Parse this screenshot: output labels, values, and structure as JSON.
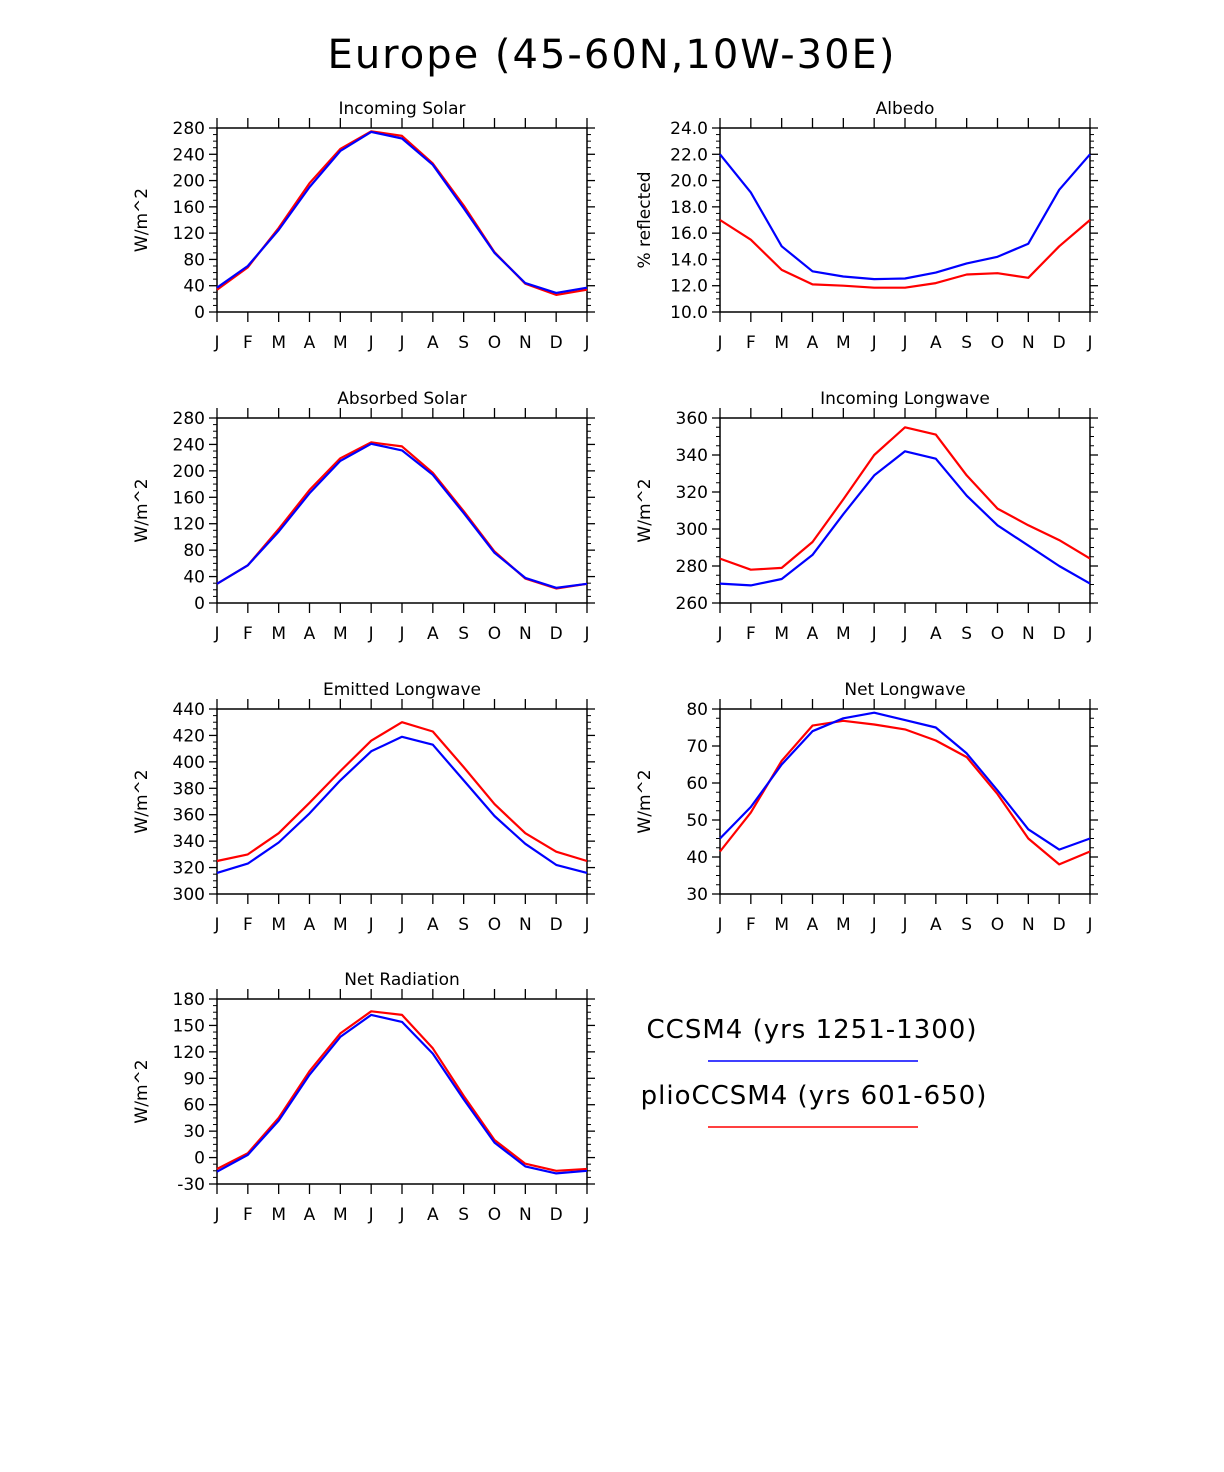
{
  "figure_title": "Europe (45-60N,10W-30E)",
  "colors": {
    "ccsm4": "#0000ff",
    "plio": "#ff0000"
  },
  "legend": [
    {
      "label": "CCSM4 (yrs 1251-1300)",
      "color": "#0000ff"
    },
    {
      "label": "plioCCSM4 (yrs 601-650)",
      "color": "#ff0000"
    }
  ],
  "chart_data": [
    {
      "id": "incoming-solar",
      "type": "line",
      "title": "Incoming Solar",
      "ylabel": "W/m^2",
      "categories": [
        "J",
        "F",
        "M",
        "A",
        "M",
        "J",
        "J",
        "A",
        "S",
        "O",
        "N",
        "D",
        "J"
      ],
      "ylim": [
        0,
        280
      ],
      "yticks": [
        "0",
        "40",
        "80",
        "120",
        "160",
        "200",
        "240",
        "280"
      ],
      "ytick_values": [
        0,
        40,
        80,
        120,
        160,
        200,
        240,
        280
      ],
      "series": [
        {
          "name": "CCSM4 (yrs 1251-1300)",
          "color": "#0000ff",
          "values": [
            37,
            70,
            125,
            190,
            245,
            274,
            264,
            224,
            158,
            90,
            44,
            29,
            37
          ]
        },
        {
          "name": "plioCCSM4 (yrs 601-650)",
          "color": "#ff0000",
          "values": [
            34,
            68,
            128,
            196,
            248,
            275,
            268,
            226,
            162,
            91,
            43,
            26,
            34
          ]
        }
      ]
    },
    {
      "id": "albedo",
      "type": "line",
      "title": "Albedo",
      "ylabel": "% reflected",
      "categories": [
        "J",
        "F",
        "M",
        "A",
        "M",
        "J",
        "J",
        "A",
        "S",
        "O",
        "N",
        "D",
        "J"
      ],
      "ylim": [
        10,
        24
      ],
      "yticks": [
        "10.0",
        "12.0",
        "14.0",
        "16.0",
        "18.0",
        "20.0",
        "22.0",
        "24.0"
      ],
      "ytick_values": [
        10,
        12,
        14,
        16,
        18,
        20,
        22,
        24
      ],
      "series": [
        {
          "name": "CCSM4 (yrs 1251-1300)",
          "color": "#0000ff",
          "values": [
            22.0,
            19.1,
            15.0,
            13.1,
            12.7,
            12.5,
            12.55,
            13.0,
            13.7,
            14.2,
            15.2,
            19.3,
            22.0
          ]
        },
        {
          "name": "plioCCSM4 (yrs 601-650)",
          "color": "#ff0000",
          "values": [
            17.0,
            15.5,
            13.2,
            12.1,
            12.0,
            11.85,
            11.85,
            12.2,
            12.85,
            12.95,
            12.6,
            15.0,
            17.0
          ]
        }
      ]
    },
    {
      "id": "absorbed-solar",
      "type": "line",
      "title": "Absorbed Solar",
      "ylabel": "W/m^2",
      "categories": [
        "J",
        "F",
        "M",
        "A",
        "M",
        "J",
        "J",
        "A",
        "S",
        "O",
        "N",
        "D",
        "J"
      ],
      "ylim": [
        0,
        280
      ],
      "yticks": [
        "0",
        "40",
        "80",
        "120",
        "160",
        "200",
        "240",
        "280"
      ],
      "ytick_values": [
        0,
        40,
        80,
        120,
        160,
        200,
        240,
        280
      ],
      "series": [
        {
          "name": "CCSM4 (yrs 1251-1300)",
          "color": "#0000ff",
          "values": [
            29,
            57,
            108,
            166,
            215,
            241,
            231,
            194,
            136,
            76,
            38,
            23,
            29
          ]
        },
        {
          "name": "plioCCSM4 (yrs 601-650)",
          "color": "#ff0000",
          "values": [
            29,
            57,
            112,
            171,
            219,
            243,
            237,
            197,
            139,
            78,
            37,
            22,
            29
          ]
        }
      ]
    },
    {
      "id": "incoming-longwave",
      "type": "line",
      "title": "Incoming Longwave",
      "ylabel": "W/m^2",
      "categories": [
        "J",
        "F",
        "M",
        "A",
        "M",
        "J",
        "J",
        "A",
        "S",
        "O",
        "N",
        "D",
        "J"
      ],
      "ylim": [
        260,
        360
      ],
      "yticks": [
        "260",
        "280",
        "300",
        "320",
        "340",
        "360"
      ],
      "ytick_values": [
        260,
        280,
        300,
        320,
        340,
        360
      ],
      "series": [
        {
          "name": "CCSM4 (yrs 1251-1300)",
          "color": "#0000ff",
          "values": [
            270.5,
            269.5,
            273,
            286,
            308,
            329,
            342,
            338,
            318,
            302,
            291,
            280,
            270.5
          ]
        },
        {
          "name": "plioCCSM4 (yrs 601-650)",
          "color": "#ff0000",
          "values": [
            284,
            278,
            279,
            293,
            316,
            340,
            355,
            351,
            329,
            311,
            302,
            294,
            284
          ]
        }
      ]
    },
    {
      "id": "emitted-longwave",
      "type": "line",
      "title": "Emitted Longwave",
      "ylabel": "W/m^2",
      "categories": [
        "J",
        "F",
        "M",
        "A",
        "M",
        "J",
        "J",
        "A",
        "S",
        "O",
        "N",
        "D",
        "J"
      ],
      "ylim": [
        300,
        440
      ],
      "yticks": [
        "300",
        "320",
        "340",
        "360",
        "380",
        "400",
        "420",
        "440"
      ],
      "ytick_values": [
        300,
        320,
        340,
        360,
        380,
        400,
        420,
        440
      ],
      "series": [
        {
          "name": "CCSM4 (yrs 1251-1300)",
          "color": "#0000ff",
          "values": [
            316,
            323,
            339,
            361,
            386,
            408,
            419,
            413,
            386,
            359,
            338,
            322,
            316
          ]
        },
        {
          "name": "plioCCSM4 (yrs 601-650)",
          "color": "#ff0000",
          "values": [
            325,
            330,
            346,
            369,
            393,
            416,
            430,
            423,
            396,
            368,
            346,
            332,
            325
          ]
        }
      ]
    },
    {
      "id": "net-longwave",
      "type": "line",
      "title": "Net Longwave",
      "ylabel": "W/m^2",
      "categories": [
        "J",
        "F",
        "M",
        "A",
        "M",
        "J",
        "J",
        "A",
        "S",
        "O",
        "N",
        "D",
        "J"
      ],
      "ylim": [
        30,
        80
      ],
      "yticks": [
        "30",
        "40",
        "50",
        "60",
        "70",
        "80"
      ],
      "ytick_values": [
        30,
        40,
        50,
        60,
        70,
        80
      ],
      "series": [
        {
          "name": "CCSM4 (yrs 1251-1300)",
          "color": "#0000ff",
          "values": [
            45,
            53.5,
            65,
            74,
            77.5,
            79,
            77,
            75,
            68,
            58,
            47.5,
            42,
            45
          ]
        },
        {
          "name": "plioCCSM4 (yrs 601-650)",
          "color": "#ff0000",
          "values": [
            41.5,
            52,
            66,
            75.5,
            76.8,
            75.8,
            74.5,
            71.5,
            67,
            57,
            45,
            38,
            41.5
          ]
        }
      ]
    },
    {
      "id": "net-radiation",
      "type": "line",
      "title": "Net Radiation",
      "ylabel": "W/m^2",
      "categories": [
        "J",
        "F",
        "M",
        "A",
        "M",
        "J",
        "J",
        "A",
        "S",
        "O",
        "N",
        "D",
        "J"
      ],
      "ylim": [
        -30,
        180
      ],
      "yticks": [
        "-30",
        "0",
        "30",
        "60",
        "90",
        "120",
        "150",
        "180"
      ],
      "ytick_values": [
        -30,
        0,
        30,
        60,
        90,
        120,
        150,
        180
      ],
      "series": [
        {
          "name": "CCSM4 (yrs 1251-1300)",
          "color": "#0000ff",
          "values": [
            -16,
            3,
            42,
            94,
            137,
            162,
            154,
            118,
            66,
            17,
            -10,
            -18,
            -15
          ]
        },
        {
          "name": "plioCCSM4 (yrs 601-650)",
          "color": "#ff0000",
          "values": [
            -13,
            5,
            45,
            98,
            141,
            166,
            162,
            124,
            70,
            20,
            -7,
            -15,
            -13
          ]
        }
      ]
    }
  ]
}
